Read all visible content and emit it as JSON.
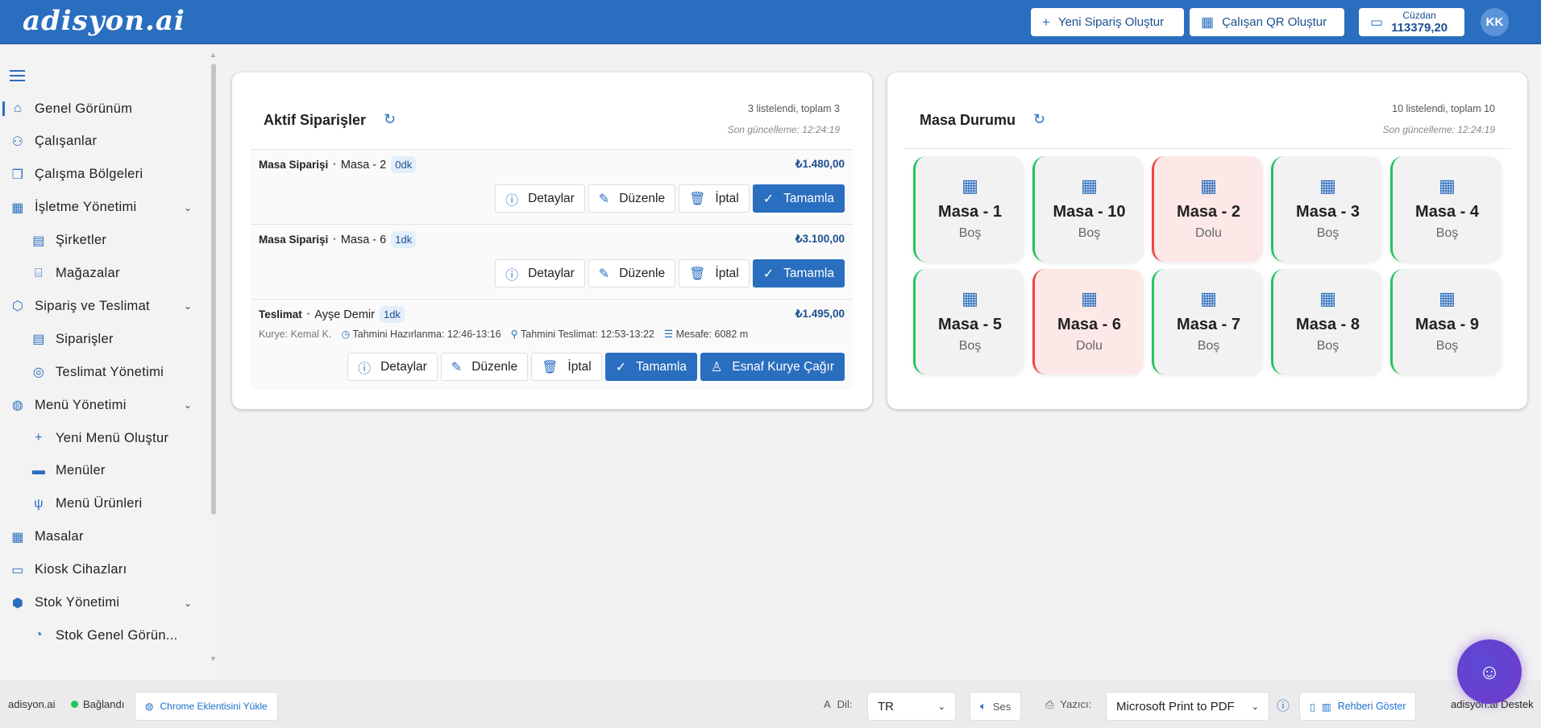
{
  "header": {
    "logo": "adisyon.ai",
    "new_order": "Yeni Sipariş Oluştur",
    "employee_qr": "Çalışan QR Oluştur",
    "wallet_label": "Cüzdan",
    "wallet_amount": "113379,20",
    "avatar": "KK"
  },
  "sidebar": {
    "items": [
      {
        "label": "Genel Görünüm",
        "icon": "home-icon",
        "level": 0,
        "active": true
      },
      {
        "label": "Çalışanlar",
        "icon": "users-icon",
        "level": 0
      },
      {
        "label": "Çalışma Bölgeleri",
        "icon": "layers-icon",
        "level": 0
      },
      {
        "label": "İşletme Yönetimi",
        "icon": "building-icon",
        "level": 0,
        "expandable": true
      },
      {
        "label": "Şirketler",
        "icon": "company-icon",
        "level": 1
      },
      {
        "label": "Mağazalar",
        "icon": "store-icon",
        "level": 1
      },
      {
        "label": "Sipariş ve Teslimat",
        "icon": "box-icon",
        "level": 0,
        "expandable": true
      },
      {
        "label": "Siparişler",
        "icon": "receipt-icon",
        "level": 1
      },
      {
        "label": "Teslimat Yönetimi",
        "icon": "delivery-icon",
        "level": 1
      },
      {
        "label": "Menü Yönetimi",
        "icon": "globe-icon",
        "level": 0,
        "expandable": true
      },
      {
        "label": "Yeni Menü Oluştur",
        "icon": "plus-icon",
        "level": 1
      },
      {
        "label": "Menüler",
        "icon": "menu-card-icon",
        "level": 1
      },
      {
        "label": "Menü Ürünleri",
        "icon": "cutlery-icon",
        "level": 1
      },
      {
        "label": "Masalar",
        "icon": "table-icon",
        "level": 0
      },
      {
        "label": "Kiosk Cihazları",
        "icon": "kiosk-icon",
        "level": 0
      },
      {
        "label": "Stok Yönetimi",
        "icon": "boxes-icon",
        "level": 0,
        "expandable": true
      },
      {
        "label": "Stok Genel Görün...",
        "icon": "chart-icon",
        "level": 1
      }
    ]
  },
  "orders": {
    "title": "Aktif Siparişler",
    "count": "3 listelendi, toplam 3",
    "updated": "Son güncelleme: 12:24:19",
    "btn_details": "Detaylar",
    "btn_edit": "Düzenle",
    "btn_cancel": "İptal",
    "btn_complete": "Tamamla",
    "btn_courier": "Esnaf Kurye Çağır",
    "items": [
      {
        "type": "Masa Siparişi",
        "name": "Masa - 2",
        "age": "0dk",
        "price": "₺1.480,00"
      },
      {
        "type": "Masa Siparişi",
        "name": "Masa - 6",
        "age": "1dk",
        "price": "₺3.100,00"
      },
      {
        "type": "Teslimat",
        "name": "Ayşe Demir",
        "age": "1dk",
        "price": "₺1.495,00",
        "courier": "Kurye: Kemal K.",
        "prep": "Tahmini Hazırlanma: 12:46-13:16",
        "delivery": "Tahmini Teslimat: 12:53-13:22",
        "distance": "Mesafe: 6082 m"
      }
    ]
  },
  "tables": {
    "title": "Masa Durumu",
    "count": "10 listelendi, toplam 10",
    "updated": "Son güncelleme: 12:24:19",
    "items": [
      {
        "name": "Masa - 1",
        "status": "Boş"
      },
      {
        "name": "Masa - 10",
        "status": "Boş"
      },
      {
        "name": "Masa - 2",
        "status": "Dolu"
      },
      {
        "name": "Masa - 3",
        "status": "Boş"
      },
      {
        "name": "Masa - 4",
        "status": "Boş"
      },
      {
        "name": "Masa - 5",
        "status": "Boş"
      },
      {
        "name": "Masa - 6",
        "status": "Dolu"
      },
      {
        "name": "Masa - 7",
        "status": "Boş"
      },
      {
        "name": "Masa - 8",
        "status": "Boş"
      },
      {
        "name": "Masa - 9",
        "status": "Boş"
      }
    ],
    "colors": {
      "empty": "#22c55e",
      "full": "#ef4444"
    }
  },
  "footer": {
    "brand": "adisyon.ai",
    "status": "Bağlandı",
    "chrome_ext": "Chrome Eklentisini Yükle",
    "lang_label": "Dil:",
    "lang_value": "TR",
    "sound": "Ses",
    "printer_label": "Yazıcı:",
    "printer_value": "Microsoft Print to PDF",
    "guide": "Rehberi Göster",
    "support": "adisyon.ai Destek"
  },
  "colors": {
    "primary": "#2a6ebf",
    "connected": "#22c55e"
  }
}
